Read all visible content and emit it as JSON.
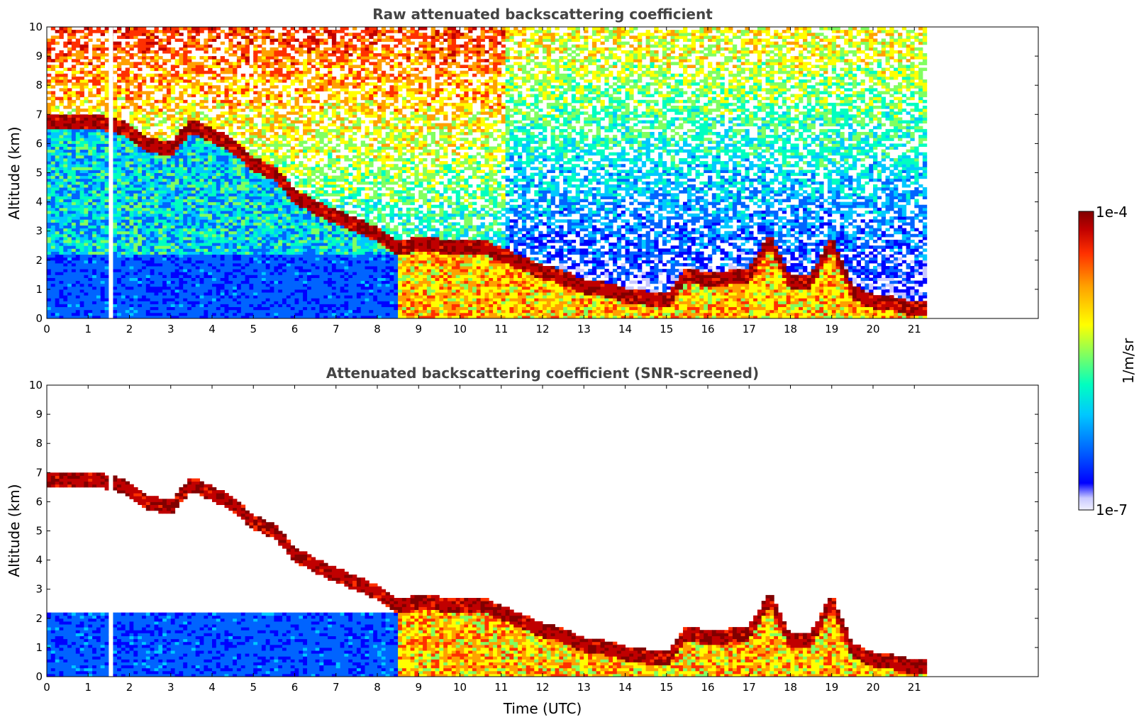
{
  "chart_data": [
    {
      "type": "heatmap",
      "title": "Raw attenuated backscattering coefficient",
      "xlabel": "",
      "ylabel": "Altitude (km)",
      "xlim": [
        0,
        24
      ],
      "ylim": [
        0,
        10
      ],
      "xticks": [
        "0",
        "1",
        "2",
        "3",
        "4",
        "5",
        "6",
        "7",
        "8",
        "9",
        "10",
        "11",
        "12",
        "13",
        "14",
        "15",
        "16",
        "17",
        "18",
        "19",
        "20",
        "21"
      ],
      "yticks": [
        "0",
        "1",
        "2",
        "3",
        "4",
        "5",
        "6",
        "7",
        "8",
        "9",
        "10"
      ],
      "data_end_hour": 21.3,
      "gap_hour": 1.5,
      "cloud_layer": {
        "time_utc": [
          1.4,
          1.9,
          2.4,
          3.0,
          3.5,
          4.0,
          4.5,
          5.0,
          5.5,
          6.0,
          6.5,
          7.0,
          7.5,
          8.0,
          8.5,
          9.0,
          9.5,
          10.0,
          10.5,
          11.0,
          11.5,
          12.0,
          12.5,
          13.0,
          13.5,
          14.0,
          14.5,
          15.0,
          15.5,
          16.0,
          16.5,
          17.0,
          17.5,
          18.0,
          18.5,
          19.0,
          19.5,
          20.0,
          20.5,
          21.0,
          21.3
        ],
        "altitude_km": [
          6.7,
          6.5,
          6.0,
          5.8,
          6.6,
          6.3,
          5.9,
          5.3,
          5.0,
          4.2,
          3.8,
          3.5,
          3.2,
          2.9,
          2.4,
          2.6,
          2.5,
          2.5,
          2.5,
          2.2,
          1.9,
          1.6,
          1.4,
          1.1,
          1.0,
          0.8,
          0.7,
          0.6,
          1.5,
          1.3,
          1.4,
          1.5,
          2.7,
          1.2,
          1.3,
          2.6,
          0.9,
          0.6,
          0.5,
          0.35,
          0.3
        ]
      }
    },
    {
      "type": "heatmap",
      "title": "Attenuated backscattering coefficient (SNR-screened)",
      "xlabel": "Time (UTC)",
      "ylabel": "Altitude (km)",
      "xlim": [
        0,
        24
      ],
      "ylim": [
        0,
        10
      ],
      "xticks": [
        "0",
        "1",
        "2",
        "3",
        "4",
        "5",
        "6",
        "7",
        "8",
        "9",
        "10",
        "11",
        "12",
        "13",
        "14",
        "15",
        "16",
        "17",
        "18",
        "19",
        "20",
        "21"
      ],
      "yticks": [
        "0",
        "1",
        "2",
        "3",
        "4",
        "5",
        "6",
        "7",
        "8",
        "9",
        "10"
      ],
      "data_end_hour": 21.3,
      "gap_hour": 1.5
    }
  ],
  "colorbar": {
    "label": "1/m/sr",
    "max_label": "1e-4",
    "min_label": "1e-7",
    "colormap": [
      "#f0f0ff",
      "#c8c8ff",
      "#0000ff",
      "#0064ff",
      "#00c8ff",
      "#00ffc0",
      "#80ff60",
      "#ffff00",
      "#ffa000",
      "#ff3000",
      "#c00000",
      "#800000"
    ]
  }
}
